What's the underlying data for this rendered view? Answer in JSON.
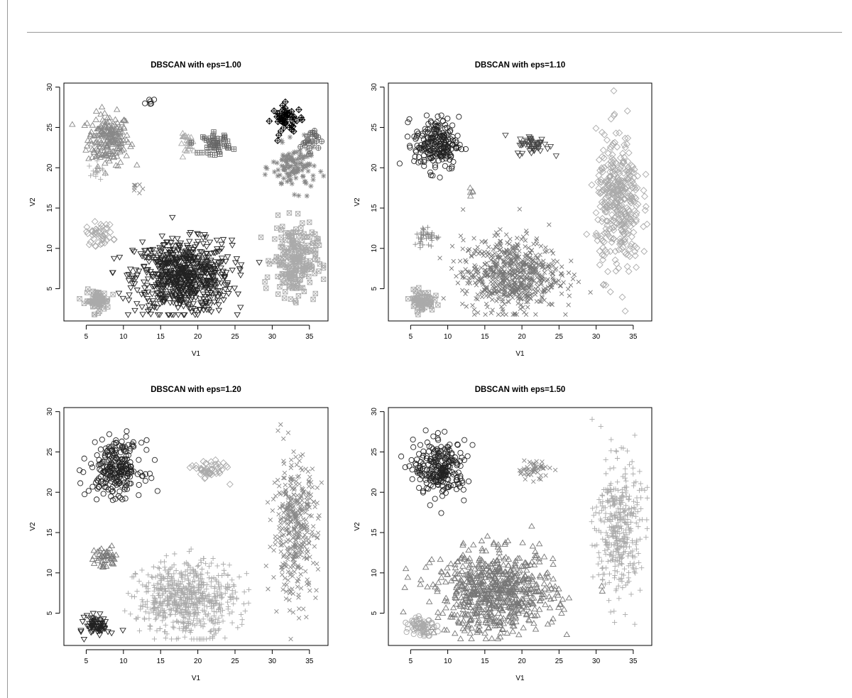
{
  "chart_data": [
    {
      "type": "scatter",
      "title": "DBSCAN with eps=1.00",
      "xlabel": "V1",
      "ylabel": "V2",
      "xlim": [
        2,
        37.5
      ],
      "ylim": [
        1,
        30.5
      ],
      "xticks": [
        5,
        10,
        15,
        20,
        25,
        30,
        35
      ],
      "yticks": [
        5,
        10,
        15,
        20,
        25,
        30
      ],
      "grid": false,
      "clusters": [
        {
          "marker": "triangle-up",
          "color": "#888888",
          "points": 200,
          "center": [
            8.0,
            23.5
          ],
          "spread": [
            2.8,
            3.2
          ]
        },
        {
          "marker": "plus",
          "color": "#aaaaaa",
          "points": 14,
          "center": [
            6.5,
            19.5
          ],
          "spread": [
            1.2,
            1.2
          ]
        },
        {
          "marker": "circle",
          "color": "#222222",
          "points": 6,
          "center": [
            13.5,
            28.2
          ],
          "spread": [
            0.6,
            0.6
          ]
        },
        {
          "marker": "cross",
          "color": "#888888",
          "points": 8,
          "center": [
            11.5,
            17.5
          ],
          "spread": [
            0.8,
            0.8
          ]
        },
        {
          "marker": "triangle-down",
          "color": "#222222",
          "points": 700,
          "center": [
            18.0,
            6.5
          ],
          "spread": [
            6.5,
            4.5
          ]
        },
        {
          "marker": "diamond",
          "color": "#aaaaaa",
          "points": 45,
          "center": [
            6.8,
            11.8
          ],
          "spread": [
            1.8,
            1.4
          ]
        },
        {
          "marker": "square-x",
          "color": "#aaaaaa",
          "points": 70,
          "center": [
            6.5,
            3.5
          ],
          "spread": [
            1.6,
            1.3
          ]
        },
        {
          "marker": "triangle-up",
          "color": "#aaaaaa",
          "points": 25,
          "center": [
            18.8,
            23.0
          ],
          "spread": [
            1.2,
            1.2
          ]
        },
        {
          "marker": "square-plus",
          "color": "#666666",
          "points": 45,
          "center": [
            22.5,
            23.0
          ],
          "spread": [
            1.8,
            1.3
          ]
        },
        {
          "marker": "diamond-plus",
          "color": "#000000",
          "points": 50,
          "center": [
            32.0,
            26.0
          ],
          "spread": [
            2.0,
            1.8
          ]
        },
        {
          "marker": "circle-plus",
          "color": "#666666",
          "points": 25,
          "center": [
            35.0,
            23.5
          ],
          "spread": [
            1.2,
            1.5
          ]
        },
        {
          "marker": "asterisk",
          "color": "#888888",
          "points": 120,
          "center": [
            33.0,
            20.0
          ],
          "spread": [
            3.0,
            2.8
          ]
        },
        {
          "marker": "square-x",
          "color": "#aaaaaa",
          "points": 230,
          "center": [
            33.0,
            8.5
          ],
          "spread": [
            3.0,
            4.5
          ]
        }
      ]
    },
    {
      "type": "scatter",
      "title": "DBSCAN with eps=1.10",
      "xlabel": "V1",
      "ylabel": "V2",
      "xlim": [
        2,
        37.5
      ],
      "ylim": [
        1,
        30.5
      ],
      "xticks": [
        5,
        10,
        15,
        20,
        25,
        30,
        35
      ],
      "yticks": [
        5,
        10,
        15,
        20,
        25,
        30
      ],
      "grid": false,
      "clusters": [
        {
          "marker": "circle",
          "color": "#222222",
          "points": 220,
          "center": [
            8.5,
            23.0
          ],
          "spread": [
            3.0,
            3.3
          ]
        },
        {
          "marker": "triangle-up",
          "color": "#888888",
          "points": 5,
          "center": [
            13.5,
            17.0
          ],
          "spread": [
            0.5,
            0.5
          ]
        },
        {
          "marker": "triangle-down",
          "color": "#444444",
          "points": 50,
          "center": [
            21.5,
            22.8
          ],
          "spread": [
            2.2,
            1.2
          ]
        },
        {
          "marker": "plus",
          "color": "#888888",
          "points": 40,
          "center": [
            7.2,
            11.5
          ],
          "spread": [
            1.8,
            1.3
          ]
        },
        {
          "marker": "square-x",
          "color": "#aaaaaa",
          "points": 70,
          "center": [
            6.5,
            3.5
          ],
          "spread": [
            1.6,
            1.3
          ]
        },
        {
          "marker": "cross",
          "color": "#777777",
          "points": 650,
          "center": [
            18.5,
            6.8
          ],
          "spread": [
            6.5,
            4.5
          ]
        },
        {
          "marker": "diamond",
          "color": "#aaaaaa",
          "points": 380,
          "center": [
            33.0,
            15.5
          ],
          "spread": [
            3.0,
            8.5
          ]
        }
      ]
    },
    {
      "type": "scatter",
      "title": "DBSCAN with eps=1.20",
      "xlabel": "V1",
      "ylabel": "V2",
      "xlim": [
        2,
        37.5
      ],
      "ylim": [
        1,
        30.5
      ],
      "xticks": [
        5,
        10,
        15,
        20,
        25,
        30,
        35
      ],
      "yticks": [
        5,
        10,
        15,
        20,
        25,
        30
      ],
      "grid": false,
      "clusters": [
        {
          "marker": "circle",
          "color": "#222222",
          "points": 240,
          "center": [
            9.0,
            23.0
          ],
          "spread": [
            3.5,
            3.3
          ]
        },
        {
          "marker": "diamond",
          "color": "#aaaaaa",
          "points": 50,
          "center": [
            21.5,
            22.8
          ],
          "spread": [
            2.2,
            1.2
          ]
        },
        {
          "marker": "triangle-up",
          "color": "#777777",
          "points": 45,
          "center": [
            7.5,
            11.8
          ],
          "spread": [
            1.8,
            1.3
          ]
        },
        {
          "marker": "triangle-down",
          "color": "#222222",
          "points": 70,
          "center": [
            6.5,
            3.5
          ],
          "spread": [
            1.6,
            1.3
          ]
        },
        {
          "marker": "plus",
          "color": "#aaaaaa",
          "points": 650,
          "center": [
            18.5,
            6.8
          ],
          "spread": [
            6.5,
            4.5
          ]
        },
        {
          "marker": "cross",
          "color": "#888888",
          "points": 380,
          "center": [
            33.0,
            15.5
          ],
          "spread": [
            3.0,
            8.5
          ]
        }
      ]
    },
    {
      "type": "scatter",
      "title": "DBSCAN with eps=1.50",
      "xlabel": "V1",
      "ylabel": "V2",
      "xlim": [
        2,
        37.5
      ],
      "ylim": [
        1,
        30.5
      ],
      "xticks": [
        5,
        10,
        15,
        20,
        25,
        30,
        35
      ],
      "yticks": [
        5,
        10,
        15,
        20,
        25,
        30
      ],
      "grid": false,
      "clusters": [
        {
          "marker": "circle",
          "color": "#222222",
          "points": 240,
          "center": [
            9.0,
            23.0
          ],
          "spread": [
            3.5,
            3.3
          ]
        },
        {
          "marker": "cross",
          "color": "#888888",
          "points": 50,
          "center": [
            21.5,
            22.8
          ],
          "spread": [
            2.2,
            1.2
          ]
        },
        {
          "marker": "triangle-up",
          "color": "#777777",
          "points": 700,
          "center": [
            16.5,
            7.5
          ],
          "spread": [
            8.0,
            5.0
          ]
        },
        {
          "marker": "circle",
          "color": "#aaaaaa",
          "points": 70,
          "center": [
            6.5,
            3.5
          ],
          "spread": [
            1.6,
            1.3
          ]
        },
        {
          "marker": "plus",
          "color": "#aaaaaa",
          "points": 380,
          "center": [
            33.0,
            15.5
          ],
          "spread": [
            3.0,
            8.5
          ]
        }
      ]
    }
  ]
}
